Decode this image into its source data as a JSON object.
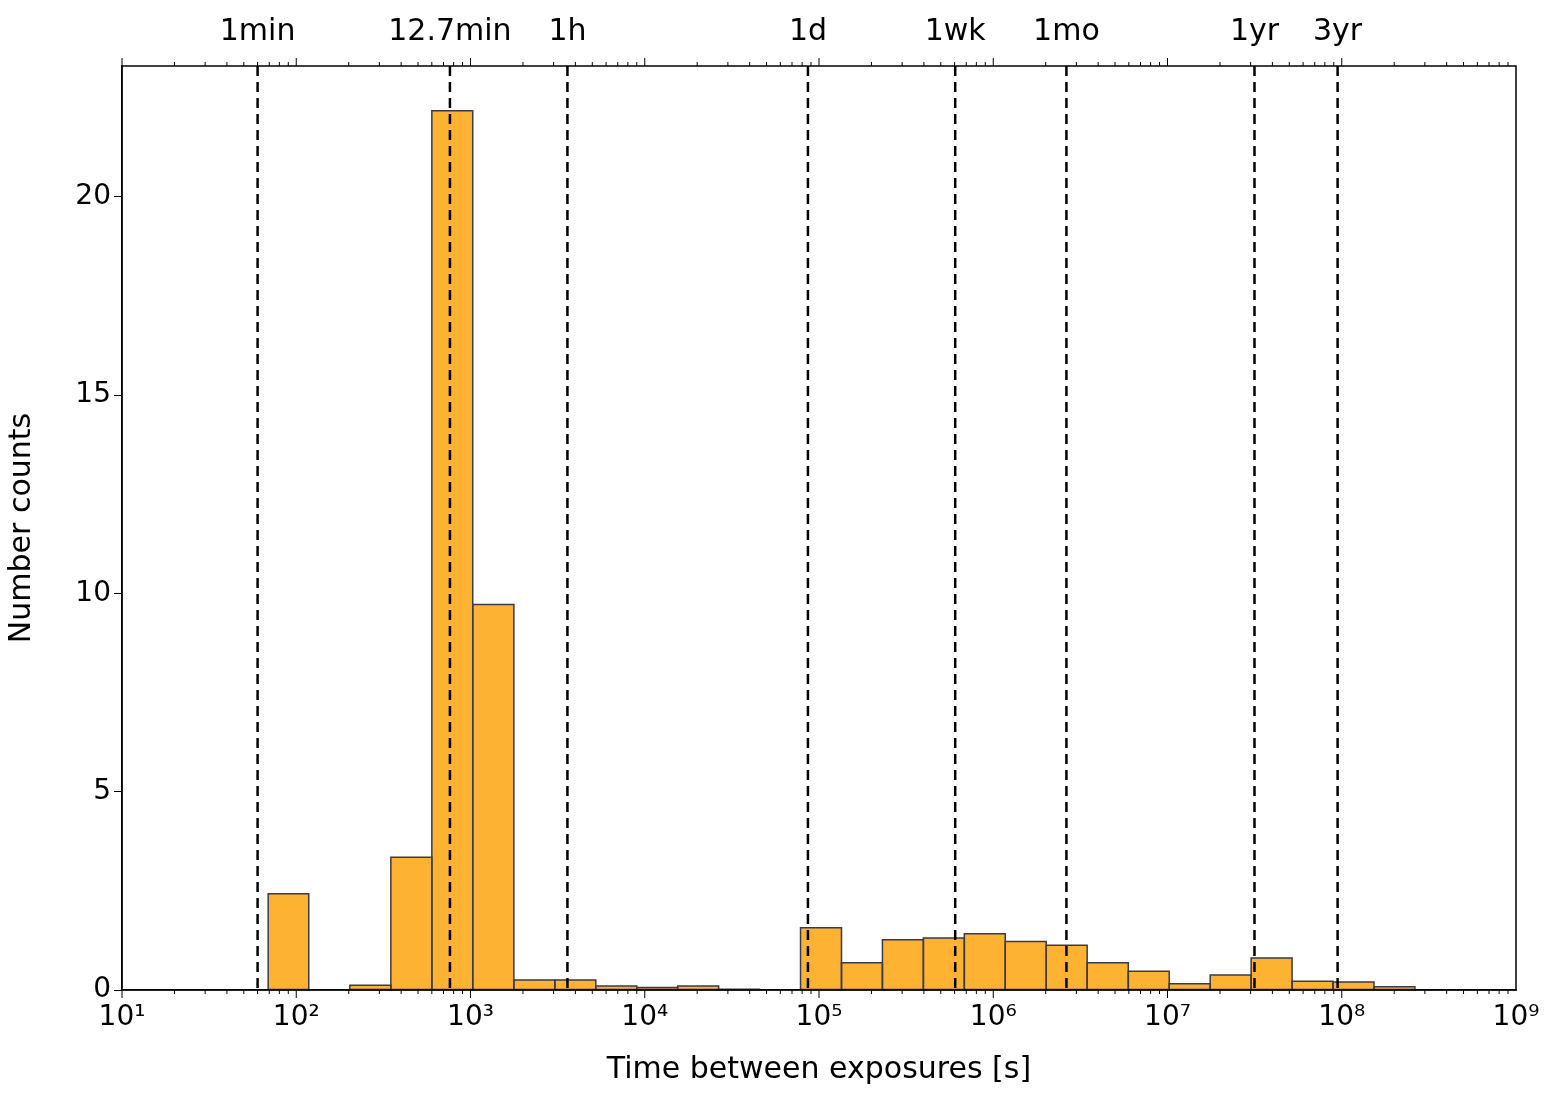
{
  "chart_data": {
    "type": "histogram",
    "xlabel": "Time between exposures [s]",
    "ylabel": "Number counts",
    "color": "#fdb231",
    "bins": [
      69,
      118,
      203,
      349,
      600,
      1030,
      1774,
      3048,
      5236,
      8995,
      15450,
      26550,
      45600,
      78340,
      134600,
      231200,
      397200,
      682300,
      1172000,
      2014000,
      3459000,
      5957000,
      10230000,
      17580000,
      30200000,
      51880000,
      89130000,
      153100000,
      263000000
    ],
    "values": [
      2.43,
      0,
      0.12,
      3.35,
      22.17,
      9.72,
      0.25,
      0.25,
      0.1,
      0.06,
      0.1,
      0.02,
      0,
      1.57,
      0.69,
      1.27,
      1.31,
      1.42,
      1.22,
      1.13,
      0.69,
      0.47,
      0.16,
      0.38,
      0.81,
      0.22,
      0.2,
      0.08
    ],
    "log": "x",
    "xlim": [
      10,
      1000000000
    ],
    "xticks": [
      {
        "value": 10,
        "label": "10¹"
      },
      {
        "value": 100,
        "label": "10²"
      },
      {
        "value": 1000,
        "label": "10³"
      },
      {
        "value": 10000,
        "label": "10⁴"
      },
      {
        "value": 100000,
        "label": "10⁵"
      },
      {
        "value": 1000000,
        "label": "10⁶"
      },
      {
        "value": 10000000,
        "label": "10⁷"
      },
      {
        "value": 100000000,
        "label": "10⁸"
      },
      {
        "value": 1000000000,
        "label": "10⁹"
      }
    ],
    "ylim": [
      0,
      23.3
    ],
    "yticks": [
      0,
      5,
      10,
      15,
      20
    ],
    "ref_lines": [
      {
        "axis": "x",
        "value": 60,
        "label": "1min",
        "line_style": "dashed"
      },
      {
        "axis": "x",
        "value": 762,
        "label": "12.7min",
        "line_style": "dashed"
      },
      {
        "axis": "x",
        "value": 3600,
        "label": "1h",
        "line_style": "dashed"
      },
      {
        "axis": "x",
        "value": 86400,
        "label": "1d",
        "line_style": "dashed"
      },
      {
        "axis": "x",
        "value": 604800,
        "label": "1wk",
        "line_style": "dashed"
      },
      {
        "axis": "x",
        "value": 2629800,
        "label": "1mo",
        "line_style": "dashed"
      },
      {
        "axis": "x",
        "value": 31560000,
        "label": "1yr",
        "line_style": "dashed"
      },
      {
        "axis": "x",
        "value": 94670000,
        "label": "3yr",
        "line_style": "dashed"
      }
    ]
  }
}
